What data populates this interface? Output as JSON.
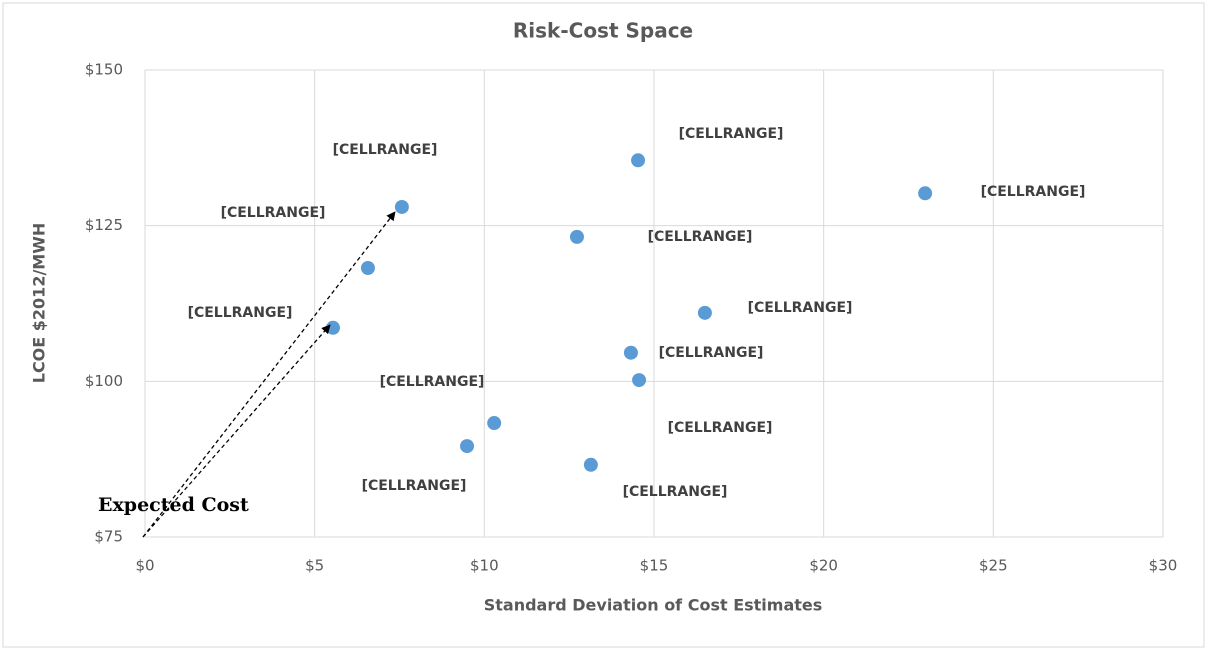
{
  "chart_data": {
    "type": "scatter",
    "title": "Risk-Cost Space",
    "x_label": "Standard Deviation of Cost Estimates",
    "y_label": "LCOE $2012/MWH",
    "annotation": "Expected Cost",
    "color": "#5b9bd5",
    "grid": true,
    "x": [
      7.57,
      6.57,
      5.54,
      14.53,
      22.99,
      12.73,
      16.5,
      14.32,
      14.56,
      10.29,
      9.49,
      13.14
    ],
    "values": [
      128,
      118.2,
      108.6,
      135.5,
      130.2,
      123.2,
      111,
      104.6,
      100.2,
      93.3,
      89.6,
      86.6
    ],
    "value_labels": [
      "[CELLRANGE]",
      "[CELLRANGE]",
      "[CELLRANGE]",
      "[CELLRANGE]",
      "[CELLRANGE]",
      "[CELLRANGE]",
      "[CELLRANGE]",
      "[CELLRANGE]",
      "[CELLRANGE]",
      "[CELLRANGE]",
      "[CELLRANGE]",
      "[CELLRANGE]"
    ],
    "xlim": [
      0,
      30
    ],
    "xticks": [
      {
        "value": 0,
        "label": "$0"
      },
      {
        "value": 5,
        "label": "$5"
      },
      {
        "value": 10,
        "label": "$10"
      },
      {
        "value": 15,
        "label": "$15"
      },
      {
        "value": 20,
        "label": "$20"
      },
      {
        "value": 25,
        "label": "$25"
      },
      {
        "value": 30,
        "label": "$30"
      }
    ],
    "ylim": [
      75,
      150
    ],
    "yticks": [
      {
        "value": 75,
        "label": "$75"
      },
      {
        "value": 100,
        "label": "$100"
      },
      {
        "value": 125,
        "label": "$125"
      },
      {
        "value": 150,
        "label": "$150"
      }
    ]
  }
}
